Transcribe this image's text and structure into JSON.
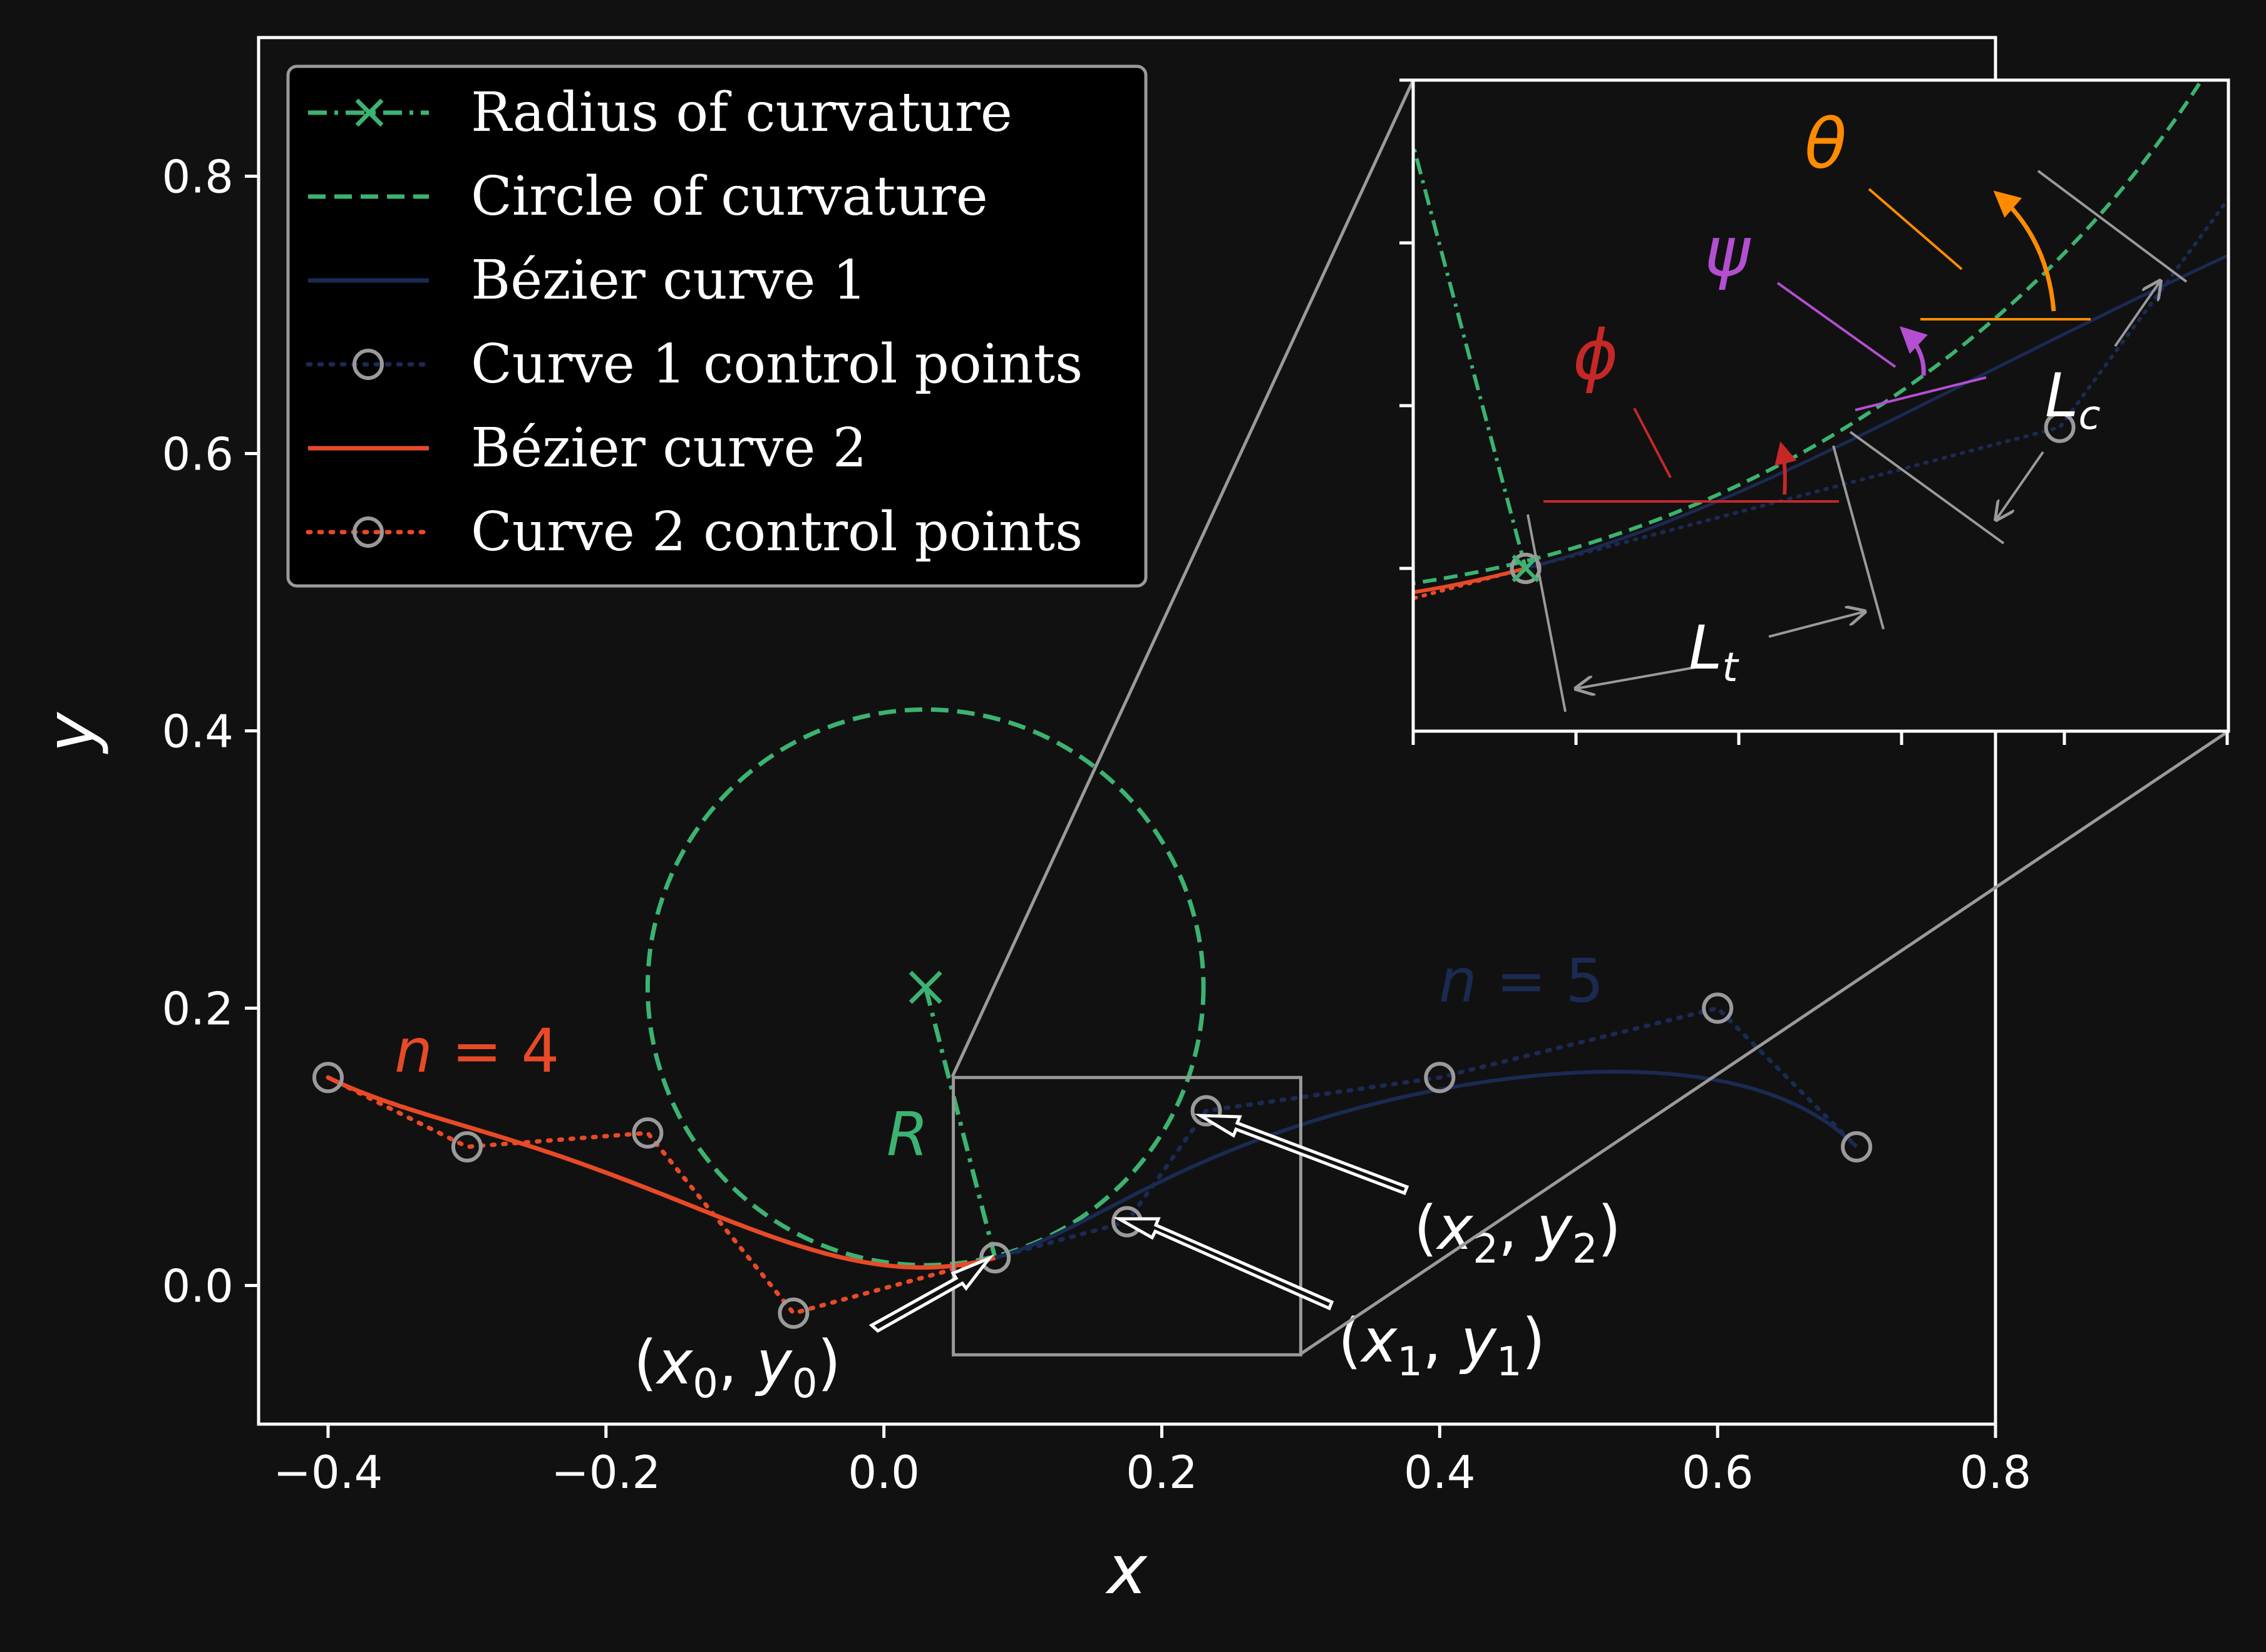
{
  "chart_data": {
    "type": "line",
    "xlabel": "x",
    "ylabel": "y",
    "xlim": [
      -0.45,
      0.8
    ],
    "ylim": [
      -0.1,
      0.9
    ],
    "xticks": [
      -0.4,
      -0.2,
      0.0,
      0.2,
      0.4,
      0.6,
      0.8
    ],
    "xtick_labels": [
      "−0.4",
      "−0.2",
      "0.0",
      "0.2",
      "0.4",
      "0.6",
      "0.8"
    ],
    "yticks": [
      0.0,
      0.2,
      0.4,
      0.6,
      0.8
    ],
    "ytick_labels": [
      "0.0",
      "0.2",
      "0.4",
      "0.6",
      "0.8"
    ],
    "grid": false,
    "legend_position": "top-left",
    "legend": [
      {
        "label": "Radius of curvature",
        "color": "#3cb371",
        "style": "dashdot-x"
      },
      {
        "label": "Circle of curvature",
        "color": "#3cb371",
        "style": "dashed"
      },
      {
        "label": "Bézier curve 1",
        "color": "#1b2a52",
        "style": "solid"
      },
      {
        "label": "Curve 1 control points",
        "color": "#1b2a52",
        "style": "dotted-o"
      },
      {
        "label": "Bézier curve 2",
        "color": "#e84a27",
        "style": "solid"
      },
      {
        "label": "Curve 2 control points",
        "color": "#e84a27",
        "style": "dotted-o"
      }
    ],
    "curve1_control_points": {
      "x": [
        0.08,
        0.175,
        0.232,
        0.4,
        0.6,
        0.7
      ],
      "y": [
        0.02,
        0.046,
        0.126,
        0.15,
        0.2,
        0.1
      ]
    },
    "curve2_control_points": {
      "x": [
        -0.4,
        -0.3,
        -0.17,
        -0.065,
        0.08
      ],
      "y": [
        0.15,
        0.1,
        0.11,
        -0.02,
        0.02
      ]
    },
    "circle_of_curvature": {
      "center": [
        0.03,
        0.215
      ],
      "radius": 0.2
    },
    "radius_of_curvature": {
      "x": [
        0.03,
        0.08
      ],
      "y": [
        0.215,
        0.02
      ]
    },
    "zoom_box": {
      "x": [
        0.05,
        0.3
      ],
      "y": [
        -0.05,
        0.15
      ]
    },
    "annotations": {
      "n4": {
        "pre": "n",
        "post": " = 4",
        "color": "#e84a27"
      },
      "n5": {
        "pre": "n",
        "post": " = 5",
        "color": "#1b2a52"
      },
      "R": {
        "text": "R",
        "color": "#3cb371"
      },
      "p0": {
        "open": "(",
        "a": "x",
        "as": "0",
        "comma": ", ",
        "b": "y",
        "bs": "0",
        "close": ")"
      },
      "p1": {
        "open": "(",
        "a": "x",
        "as": "1",
        "comma": ", ",
        "b": "y",
        "bs": "1",
        "close": ")"
      },
      "p2": {
        "open": "(",
        "a": "x",
        "as": "2",
        "comma": ", ",
        "b": "y",
        "bs": "2",
        "close": ")"
      }
    },
    "inset": {
      "labels": {
        "theta": {
          "text": "θ",
          "color": "#ff8c00"
        },
        "psi": {
          "text": "ψ",
          "color": "#b44fd1"
        },
        "phi": {
          "text": "ϕ",
          "color": "#c62828"
        },
        "Lc": {
          "main": "L",
          "sub": "c"
        },
        "Lt": {
          "main": "L",
          "sub": "t"
        }
      }
    }
  },
  "colors": {
    "background": "#111111",
    "axes": "#ffffff",
    "green": "#3cb371",
    "blue": "#1b2a52",
    "orange_red": "#e84a27",
    "marker": "#9a9a9a",
    "zoom": "#9a9a9a"
  }
}
